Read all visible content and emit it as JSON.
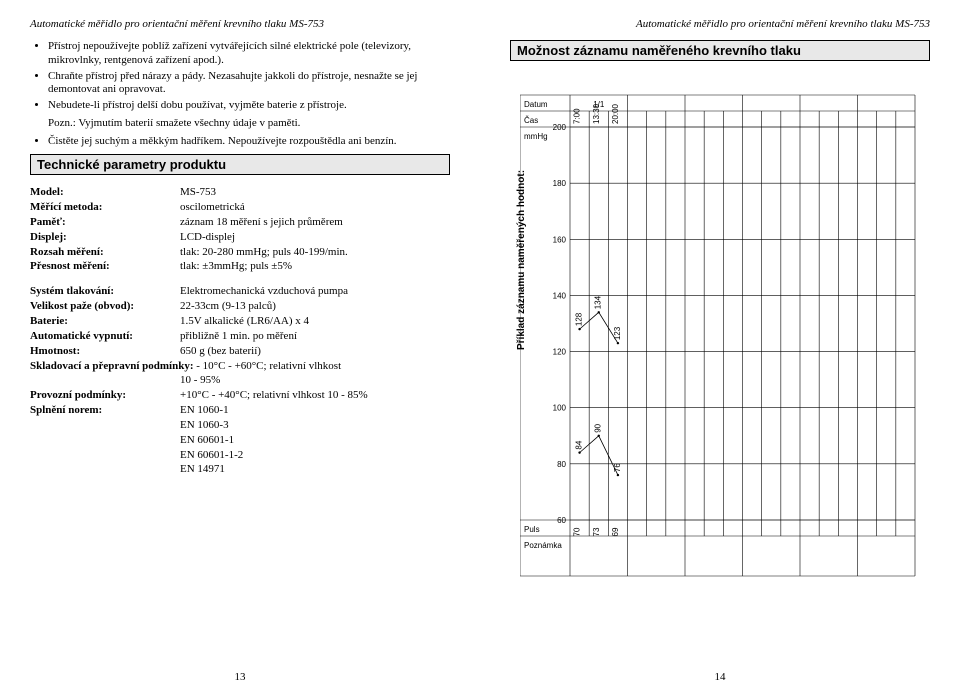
{
  "doc_title": "Automatické měřidlo pro orientační měření krevního tlaku MS-753",
  "left": {
    "bullets_a": [
      "Přístroj nepoužívejte poblíž zařízení vytvářejících silné elektrické pole (televizory, mikrovlnky, rentgenová zařízení apod.).",
      "Chraňte přístroj před nárazy a pády. Nezasahujte jakkoli do přístroje, nesnažte se jej demontovat ani opravovat.",
      "Nebudete-li přístroj delší dobu používat, vyjměte baterie z přístroje."
    ],
    "pozn": "Pozn.: Vyjmutím baterií smažete všechny údaje v paměti.",
    "bullets_b": [
      "Čistěte jej suchým a měkkým hadříkem. Nepoužívejte rozpouštědla ani benzín."
    ],
    "section_a": "Technické parametry produktu",
    "specs_a": [
      {
        "label": "Model:",
        "value": "MS-753"
      },
      {
        "label": "Měřící metoda:",
        "value": "oscilometrická"
      },
      {
        "label": "Paměť:",
        "value": "záznam 18 měření s jejich průměrem"
      },
      {
        "label": "Displej:",
        "value": "LCD-displej"
      },
      {
        "label": "Rozsah měření:",
        "value": "tlak: 20-280 mmHg; puls 40-199/min."
      },
      {
        "label": "Přesnost měření:",
        "value": "tlak: ±3mmHg; puls ±5%"
      }
    ],
    "specs_b": [
      {
        "label": "Systém tlakování:",
        "value": "Elektromechanická vzduchová pumpa"
      },
      {
        "label": "Velikost paže (obvod):",
        "value": "22-33cm (9-13 palců)"
      },
      {
        "label": "Baterie:",
        "value": "1.5V alkalické (LR6/AA) x 4"
      },
      {
        "label": "Automatické vypnutí:",
        "value": "přibližně 1 min. po měření"
      },
      {
        "label": "Hmotnost:",
        "value": "650 g (bez baterií)"
      }
    ],
    "storage_label": "Skladovací a přepravní podmínky:",
    "storage_val1": "- 10°C - +60°C; relativní vlhkost",
    "storage_val2": "10 - 95%",
    "specs_c": [
      {
        "label": "Provozní podmínky:",
        "value": "+10°C - +40°C; relativní vlhkost 10 - 85%"
      },
      {
        "label": "Splnění norem:",
        "value": "EN 1060-1"
      }
    ],
    "norms_extra": [
      "EN 1060-3",
      "EN 60601-1",
      "EN 60601-1-2",
      "EN 14971"
    ],
    "pagenum": "13"
  },
  "right": {
    "section": "Možnost záznamu naměřeného krevního tlaku",
    "pagenum": "14",
    "chart": {
      "type": "record-grid",
      "background": "#ffffff",
      "grid_color": "#000000",
      "grid_stroke": 0.6,
      "cols": 6,
      "y_axis_title": "Příklad záznamu naměřených hodnot:",
      "left_header_labels": [
        "Datum",
        "Čas",
        "mmHg"
      ],
      "mmhg_ticks": [
        200,
        180,
        160,
        140,
        120,
        100,
        80,
        60
      ],
      "bottom_row_labels": [
        "Puls",
        "Poznámka"
      ],
      "example_col": {
        "date": "1/1",
        "times": [
          "7:00",
          "13:30",
          "20:00"
        ],
        "systolic": [
          128,
          134,
          123
        ],
        "diastolic": [
          84,
          90,
          76
        ],
        "pulses": [
          70,
          73,
          69
        ],
        "line_color": "#000000",
        "line_width": 0.8,
        "font_size": 8
      }
    }
  }
}
